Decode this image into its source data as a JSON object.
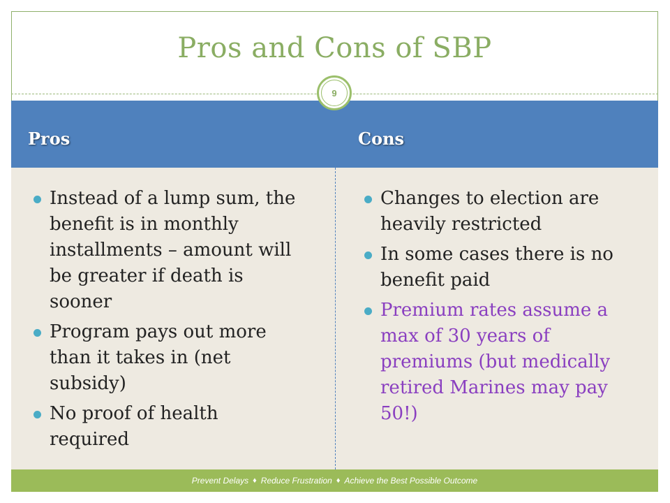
{
  "slide": {
    "title": "Pros and Cons of SBP",
    "number": "9",
    "pros_heading": "Pros",
    "cons_heading": "Cons",
    "pros": [
      "Instead of a lump sum, the benefit is in monthly installments – amount will be greater if death is sooner",
      "Program pays out more than it takes in (net subsidy)",
      "No proof of health required"
    ],
    "cons": [
      "Changes to election are heavily restricted",
      "In some cases there is no benefit paid",
      "Premium rates assume a max of 30 years of premiums (but medically retired Marines may pay 50!)"
    ],
    "footer": {
      "part1": "Prevent Delays",
      "part2": "Reduce Frustration",
      "part3": "Achieve the Best Possible Outcome",
      "separator": "♦"
    }
  },
  "colors": {
    "title_green": "#8aad63",
    "header_blue": "#4f81bd",
    "bullet_teal": "#4aacc6",
    "body_bg": "#eeeae1",
    "footer_green": "#9bbb59",
    "accent_purple": "#8a3fc0"
  }
}
